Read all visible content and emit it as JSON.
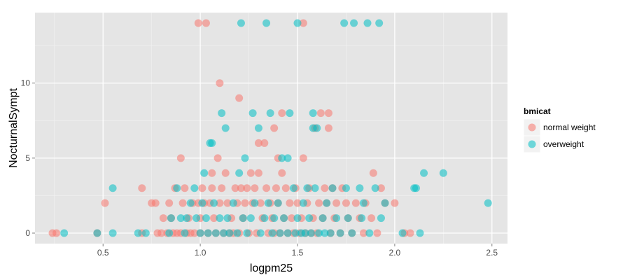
{
  "chart_data": {
    "type": "scatter",
    "xlabel": "logpm25",
    "ylabel": "NocturnalSympt",
    "xlim": [
      0.15,
      2.58
    ],
    "ylim": [
      -0.7,
      14.7
    ],
    "x_ticks": [
      0.5,
      1.0,
      1.5,
      2.0,
      2.5
    ],
    "x_tick_labels": [
      "0.5",
      "1.0",
      "1.5",
      "2.0",
      "2.5"
    ],
    "y_ticks": [
      0,
      5,
      10
    ],
    "y_tick_labels": [
      "0",
      "5",
      "10"
    ],
    "grid": true,
    "background": "#e5e5e5",
    "legend": {
      "title": "bmicat",
      "placement": "right",
      "entries": [
        "normal weight",
        "overweight"
      ]
    },
    "series": [
      {
        "name": "normal weight",
        "color": "#f8766d",
        "points": [
          [
            0.24,
            0
          ],
          [
            0.26,
            0
          ],
          [
            0.47,
            0
          ],
          [
            0.51,
            2
          ],
          [
            0.7,
            3
          ],
          [
            0.7,
            0
          ],
          [
            0.75,
            2
          ],
          [
            0.77,
            2
          ],
          [
            0.78,
            0
          ],
          [
            0.8,
            0
          ],
          [
            0.81,
            1
          ],
          [
            0.83,
            0
          ],
          [
            0.84,
            2
          ],
          [
            0.85,
            1
          ],
          [
            0.86,
            0
          ],
          [
            0.87,
            3
          ],
          [
            0.88,
            0
          ],
          [
            0.9,
            5
          ],
          [
            0.9,
            0
          ],
          [
            0.91,
            2
          ],
          [
            0.92,
            3
          ],
          [
            0.93,
            0
          ],
          [
            0.94,
            1
          ],
          [
            0.95,
            0
          ],
          [
            0.96,
            2
          ],
          [
            0.97,
            0
          ],
          [
            0.99,
            14
          ],
          [
            0.99,
            2
          ],
          [
            1.0,
            1
          ],
          [
            1.0,
            0
          ],
          [
            1.01,
            3
          ],
          [
            1.02,
            2
          ],
          [
            1.03,
            14
          ],
          [
            1.04,
            0
          ],
          [
            1.05,
            2
          ],
          [
            1.06,
            4
          ],
          [
            1.06,
            3
          ],
          [
            1.07,
            1
          ],
          [
            1.08,
            0
          ],
          [
            1.09,
            5
          ],
          [
            1.1,
            10
          ],
          [
            1.1,
            2
          ],
          [
            1.11,
            3
          ],
          [
            1.12,
            0
          ],
          [
            1.13,
            4
          ],
          [
            1.14,
            2
          ],
          [
            1.15,
            0
          ],
          [
            1.16,
            1
          ],
          [
            1.17,
            0
          ],
          [
            1.18,
            3
          ],
          [
            1.19,
            2
          ],
          [
            1.2,
            9
          ],
          [
            1.2,
            0
          ],
          [
            1.21,
            3
          ],
          [
            1.22,
            1
          ],
          [
            1.23,
            2
          ],
          [
            1.24,
            3
          ],
          [
            1.25,
            0
          ],
          [
            1.26,
            4
          ],
          [
            1.27,
            2
          ],
          [
            1.28,
            3
          ],
          [
            1.29,
            0
          ],
          [
            1.3,
            6
          ],
          [
            1.3,
            4
          ],
          [
            1.31,
            2
          ],
          [
            1.32,
            1
          ],
          [
            1.33,
            6
          ],
          [
            1.34,
            3
          ],
          [
            1.35,
            0
          ],
          [
            1.36,
            2
          ],
          [
            1.37,
            1
          ],
          [
            1.38,
            7
          ],
          [
            1.38,
            0
          ],
          [
            1.39,
            3
          ],
          [
            1.4,
            5
          ],
          [
            1.4,
            2
          ],
          [
            1.41,
            0
          ],
          [
            1.42,
            8
          ],
          [
            1.42,
            4
          ],
          [
            1.43,
            1
          ],
          [
            1.44,
            3
          ],
          [
            1.45,
            0
          ],
          [
            1.46,
            2
          ],
          [
            1.47,
            1
          ],
          [
            1.48,
            0
          ],
          [
            1.49,
            3
          ],
          [
            1.5,
            2
          ],
          [
            1.51,
            0
          ],
          [
            1.52,
            1
          ],
          [
            1.53,
            14
          ],
          [
            1.53,
            5
          ],
          [
            1.54,
            0
          ],
          [
            1.55,
            2
          ],
          [
            1.56,
            3
          ],
          [
            1.57,
            0
          ],
          [
            1.58,
            1
          ],
          [
            1.59,
            7
          ],
          [
            1.6,
            0
          ],
          [
            1.61,
            2
          ],
          [
            1.62,
            8
          ],
          [
            1.63,
            1
          ],
          [
            1.64,
            3
          ],
          [
            1.65,
            2
          ],
          [
            1.66,
            8
          ],
          [
            1.66,
            7
          ],
          [
            1.67,
            0
          ],
          [
            1.68,
            3
          ],
          [
            1.69,
            1
          ],
          [
            1.7,
            2
          ],
          [
            1.72,
            0
          ],
          [
            1.73,
            3
          ],
          [
            1.75,
            2
          ],
          [
            1.76,
            1
          ],
          [
            1.78,
            0
          ],
          [
            1.8,
            2
          ],
          [
            1.82,
            1
          ],
          [
            1.84,
            0
          ],
          [
            1.85,
            2
          ],
          [
            1.88,
            1
          ],
          [
            1.89,
            4
          ],
          [
            1.91,
            0
          ],
          [
            1.93,
            3
          ],
          [
            1.95,
            2
          ],
          [
            2.0,
            2
          ],
          [
            2.05,
            0
          ],
          [
            2.08,
            0
          ]
        ]
      },
      {
        "name": "overweight",
        "color": "#00bfc4",
        "points": [
          [
            0.3,
            0
          ],
          [
            0.47,
            0
          ],
          [
            0.55,
            3
          ],
          [
            0.55,
            0
          ],
          [
            0.68,
            0
          ],
          [
            0.72,
            0
          ],
          [
            0.84,
            0
          ],
          [
            0.85,
            1
          ],
          [
            0.88,
            3
          ],
          [
            0.9,
            1
          ],
          [
            0.92,
            0
          ],
          [
            0.93,
            1
          ],
          [
            0.95,
            2
          ],
          [
            0.97,
            3
          ],
          [
            0.98,
            1
          ],
          [
            1.0,
            0
          ],
          [
            1.01,
            2
          ],
          [
            1.02,
            4
          ],
          [
            1.03,
            1
          ],
          [
            1.04,
            0
          ],
          [
            1.05,
            6
          ],
          [
            1.06,
            6
          ],
          [
            1.07,
            2
          ],
          [
            1.08,
            0
          ],
          [
            1.1,
            1
          ],
          [
            1.11,
            8
          ],
          [
            1.12,
            0
          ],
          [
            1.13,
            7
          ],
          [
            1.14,
            1
          ],
          [
            1.15,
            0
          ],
          [
            1.17,
            2
          ],
          [
            1.19,
            0
          ],
          [
            1.2,
            4
          ],
          [
            1.21,
            14
          ],
          [
            1.22,
            1
          ],
          [
            1.23,
            5
          ],
          [
            1.24,
            0
          ],
          [
            1.26,
            1
          ],
          [
            1.27,
            8
          ],
          [
            1.28,
            2
          ],
          [
            1.3,
            7
          ],
          [
            1.31,
            0
          ],
          [
            1.33,
            1
          ],
          [
            1.34,
            14
          ],
          [
            1.35,
            2
          ],
          [
            1.36,
            8
          ],
          [
            1.37,
            0
          ],
          [
            1.38,
            1
          ],
          [
            1.4,
            2
          ],
          [
            1.41,
            0
          ],
          [
            1.42,
            5
          ],
          [
            1.43,
            1
          ],
          [
            1.45,
            5
          ],
          [
            1.45,
            0
          ],
          [
            1.46,
            8
          ],
          [
            1.48,
            3
          ],
          [
            1.49,
            0
          ],
          [
            1.5,
            14
          ],
          [
            1.5,
            1
          ],
          [
            1.52,
            0
          ],
          [
            1.53,
            2
          ],
          [
            1.54,
            0
          ],
          [
            1.55,
            3
          ],
          [
            1.56,
            1
          ],
          [
            1.57,
            0
          ],
          [
            1.58,
            8
          ],
          [
            1.58,
            7
          ],
          [
            1.59,
            3
          ],
          [
            1.6,
            7
          ],
          [
            1.61,
            0
          ],
          [
            1.63,
            1
          ],
          [
            1.64,
            0
          ],
          [
            1.65,
            2
          ],
          [
            1.67,
            0
          ],
          [
            1.68,
            3
          ],
          [
            1.7,
            1
          ],
          [
            1.72,
            0
          ],
          [
            1.74,
            14
          ],
          [
            1.75,
            3
          ],
          [
            1.76,
            1
          ],
          [
            1.78,
            0
          ],
          [
            1.79,
            14
          ],
          [
            1.82,
            3
          ],
          [
            1.83,
            1
          ],
          [
            1.84,
            2
          ],
          [
            1.86,
            14
          ],
          [
            1.87,
            0
          ],
          [
            1.9,
            3
          ],
          [
            1.92,
            14
          ],
          [
            1.93,
            1
          ],
          [
            1.95,
            2
          ],
          [
            2.04,
            0
          ],
          [
            2.1,
            3
          ],
          [
            2.11,
            3
          ],
          [
            2.13,
            0
          ],
          [
            2.15,
            4
          ],
          [
            2.25,
            4
          ],
          [
            2.48,
            2
          ]
        ]
      }
    ]
  }
}
